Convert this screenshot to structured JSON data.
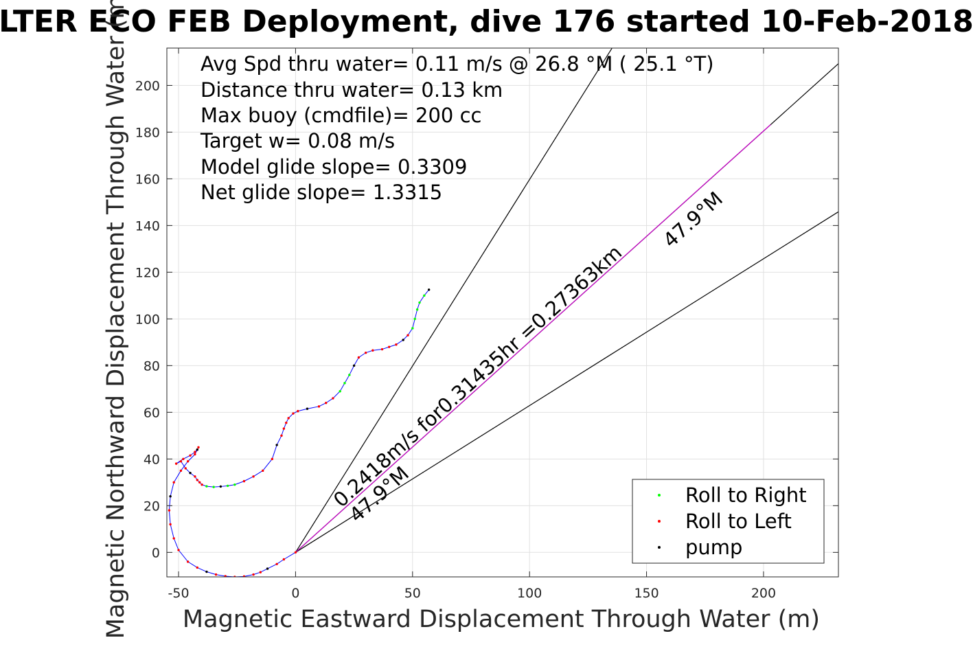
{
  "chart_data": {
    "type": "line",
    "title": "LTER ECO FEB Deployment, dive 176 started 10-Feb-2018",
    "xlabel": "Magnetic Eastward Displacement Through Water (m)",
    "ylabel": "Magnetic Northward Displacement Through Water (m)",
    "xlim": [
      -55,
      232
    ],
    "ylim": [
      -10.5,
      216
    ],
    "xticks": [
      -50,
      0,
      50,
      100,
      150,
      200
    ],
    "yticks": [
      0,
      20,
      40,
      60,
      80,
      100,
      120,
      140,
      160,
      180,
      200
    ],
    "xtick_labels": [
      "-50",
      "0",
      "50",
      "100",
      "150",
      "200"
    ],
    "ytick_labels": [
      "0",
      "20",
      "40",
      "60",
      "80",
      "100",
      "120",
      "140",
      "160",
      "180",
      "200"
    ],
    "grid": true,
    "info_lines": [
      "Avg Spd thru water=  0.11 m/s @  26.8 °M ( 25.1 °T)",
      "Distance thru water=  0.13 km",
      "Max buoy (cmdfile)= 200 cc",
      "Target w= 0.08 m/s",
      "Model glide slope= 0.3309",
      "Net glide slope= 1.3315"
    ],
    "annotations": {
      "speed": "0.2418m/s for0.31435hr =0.27363km",
      "heading_near": "47.9°M",
      "heading_far": "47.9°M"
    },
    "track": {
      "name": "trajectory",
      "color": "#0000ff",
      "x": [
        0,
        -5,
        -8,
        -12,
        -15,
        -18,
        -22,
        -26,
        -30,
        -34,
        -38,
        -42,
        -46,
        -50,
        -52,
        -53.5,
        -54,
        -53.5,
        -52,
        -49,
        -46,
        -43,
        -42,
        -41.5,
        -42,
        -43,
        -45,
        -48,
        -51,
        -49,
        -47,
        -45,
        -43,
        -42,
        -41,
        -40,
        -38,
        -35,
        -32,
        -29,
        -26,
        -22,
        -18,
        -14,
        -10,
        -8,
        -6,
        -5,
        -4,
        -3,
        -1,
        1,
        5,
        10,
        13,
        16,
        19,
        21,
        23,
        25,
        27,
        30,
        33,
        37,
        40,
        43,
        46,
        48,
        50,
        51,
        52,
        53,
        55,
        57
      ],
      "y": [
        0,
        -3,
        -5,
        -7,
        -8.5,
        -9.5,
        -10.3,
        -10.5,
        -10.2,
        -9.5,
        -8.3,
        -6.5,
        -4,
        1,
        6,
        12,
        18,
        24,
        30,
        35,
        39,
        42,
        44,
        45,
        44,
        43,
        41.5,
        40,
        38,
        39,
        36,
        34,
        32.5,
        31,
        30,
        29,
        28.3,
        28,
        28.2,
        28.5,
        29,
        30.5,
        32.5,
        35,
        40,
        46,
        50,
        53,
        55.5,
        57.5,
        59.5,
        60.5,
        61.5,
        62.5,
        64,
        66,
        69,
        72.5,
        76,
        80,
        83.5,
        85.5,
        86.5,
        87,
        88,
        89,
        91,
        93,
        96,
        100,
        104,
        107,
        110,
        112.5
      ]
    },
    "reference_lines": [
      {
        "name": "bearing-line-steep",
        "color": "#000000",
        "slope": 1.597
      },
      {
        "name": "bearing-line-center",
        "color": "#000000",
        "slope": 0.9023
      },
      {
        "name": "bearing-line-shallow",
        "color": "#000000",
        "slope": 0.6288
      }
    ],
    "net_segment": {
      "name": "net-displacement",
      "color": "#cc00cc",
      "x": [
        0,
        203
      ],
      "y": [
        0,
        183.2
      ]
    },
    "legend": {
      "position": "bottom-right",
      "entries": [
        {
          "label": "Roll to Right",
          "color": "#00ff00"
        },
        {
          "label": "Roll to Left",
          "color": "#ff0000"
        },
        {
          "label": "pump",
          "color": "#000000"
        }
      ]
    }
  }
}
